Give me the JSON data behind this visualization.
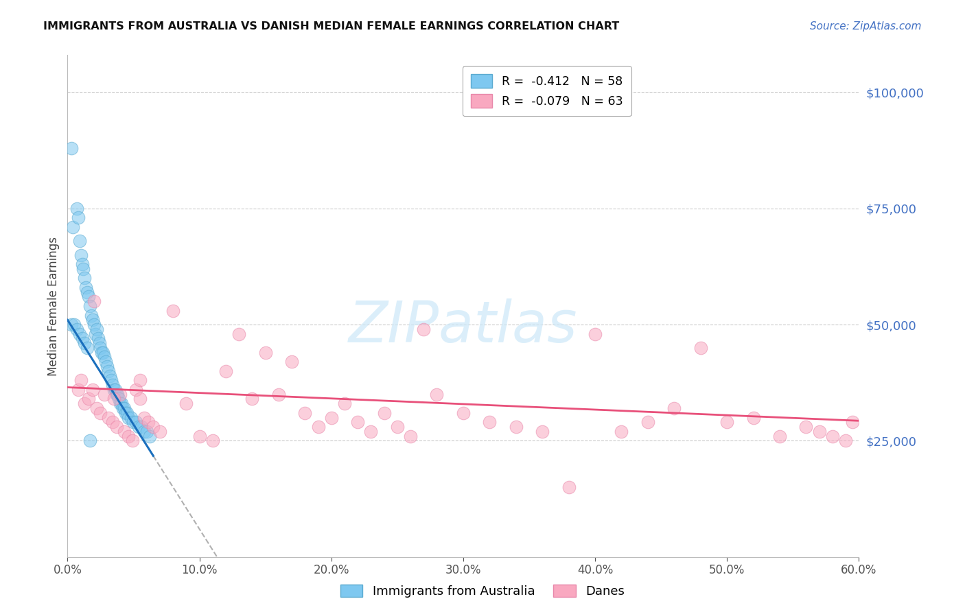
{
  "title": "IMMIGRANTS FROM AUSTRALIA VS DANISH MEDIAN FEMALE EARNINGS CORRELATION CHART",
  "source": "Source: ZipAtlas.com",
  "ylabel": "Median Female Earnings",
  "xlim": [
    0.0,
    0.6
  ],
  "ylim": [
    0,
    108000
  ],
  "right_yticks": [
    25000,
    50000,
    75000,
    100000
  ],
  "right_ytick_labels": [
    "$25,000",
    "$50,000",
    "$75,000",
    "$100,000"
  ],
  "xticks": [
    0.0,
    0.1,
    0.2,
    0.3,
    0.4,
    0.5,
    0.6
  ],
  "xtick_labels": [
    "0.0%",
    "10.0%",
    "20.0%",
    "30.0%",
    "40.0%",
    "50.0%",
    "60.0%"
  ],
  "blue_x": [
    0.003,
    0.004,
    0.007,
    0.008,
    0.009,
    0.01,
    0.011,
    0.012,
    0.013,
    0.014,
    0.015,
    0.016,
    0.017,
    0.018,
    0.019,
    0.02,
    0.021,
    0.022,
    0.023,
    0.024,
    0.025,
    0.026,
    0.027,
    0.028,
    0.029,
    0.03,
    0.031,
    0.032,
    0.033,
    0.034,
    0.035,
    0.036,
    0.037,
    0.038,
    0.039,
    0.04,
    0.041,
    0.042,
    0.043,
    0.044,
    0.045,
    0.046,
    0.048,
    0.05,
    0.052,
    0.054,
    0.056,
    0.058,
    0.06,
    0.062,
    0.003,
    0.005,
    0.007,
    0.009,
    0.011,
    0.013,
    0.015,
    0.017
  ],
  "blue_y": [
    88000,
    71000,
    75000,
    73000,
    68000,
    65000,
    63000,
    62000,
    60000,
    58000,
    57000,
    56000,
    54000,
    52000,
    51000,
    50000,
    48000,
    49000,
    47000,
    46000,
    45000,
    44000,
    44000,
    43000,
    42000,
    41000,
    40000,
    39000,
    38000,
    37000,
    36000,
    36000,
    35000,
    35000,
    34000,
    33000,
    33000,
    32000,
    32000,
    31000,
    31000,
    30000,
    30000,
    29000,
    29000,
    28000,
    28000,
    27000,
    27000,
    26000,
    50000,
    50000,
    49000,
    48000,
    47000,
    46000,
    45000,
    25000
  ],
  "pink_x": [
    0.008,
    0.01,
    0.013,
    0.016,
    0.019,
    0.022,
    0.025,
    0.028,
    0.031,
    0.034,
    0.037,
    0.04,
    0.043,
    0.046,
    0.049,
    0.052,
    0.055,
    0.058,
    0.061,
    0.065,
    0.07,
    0.08,
    0.09,
    0.1,
    0.11,
    0.12,
    0.13,
    0.14,
    0.15,
    0.16,
    0.17,
    0.18,
    0.19,
    0.2,
    0.21,
    0.22,
    0.23,
    0.24,
    0.25,
    0.26,
    0.27,
    0.28,
    0.3,
    0.32,
    0.34,
    0.36,
    0.38,
    0.4,
    0.42,
    0.44,
    0.46,
    0.48,
    0.5,
    0.52,
    0.54,
    0.56,
    0.57,
    0.58,
    0.59,
    0.595,
    0.02,
    0.035,
    0.055
  ],
  "pink_y": [
    36000,
    38000,
    33000,
    34000,
    36000,
    32000,
    31000,
    35000,
    30000,
    29000,
    28000,
    35000,
    27000,
    26000,
    25000,
    36000,
    34000,
    30000,
    29000,
    28000,
    27000,
    53000,
    33000,
    26000,
    25000,
    40000,
    48000,
    34000,
    44000,
    35000,
    42000,
    31000,
    28000,
    30000,
    33000,
    29000,
    27000,
    31000,
    28000,
    26000,
    49000,
    35000,
    31000,
    29000,
    28000,
    27000,
    15000,
    48000,
    27000,
    29000,
    32000,
    45000,
    29000,
    30000,
    26000,
    28000,
    27000,
    26000,
    25000,
    29000,
    55000,
    34000,
    38000
  ],
  "blue_line_color": "#1a6fbd",
  "pink_line_color": "#e8507a",
  "dashed_line_color": "#b0b0b0",
  "blue_scatter_color": "#7ec8f0",
  "blue_edge_color": "#5aaad0",
  "pink_scatter_color": "#f9a8c0",
  "pink_edge_color": "#e888aa",
  "grid_color": "#cccccc",
  "title_color": "#111111",
  "right_label_color": "#4472c4",
  "source_color": "#4472c4",
  "ylabel_color": "#444444",
  "watermark_color": "#cce8f8",
  "legend_label1": "R =  -0.412   N = 58",
  "legend_label2": "R =  -0.079   N = 63",
  "bottom_legend_label1": "Immigrants from Australia",
  "bottom_legend_label2": "Danes"
}
